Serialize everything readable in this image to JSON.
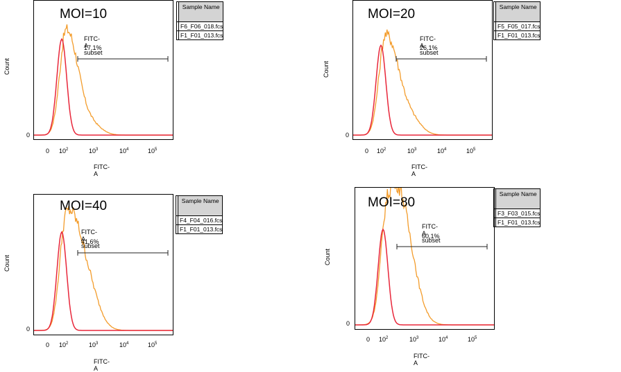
{
  "chart_data": [
    {
      "type": "histogram",
      "title": "MOI=10",
      "xlabel": "FITC-A",
      "ylabel": "Count",
      "y_zero_label": "0",
      "x_ticks": [
        {
          "base": "0",
          "exp": ""
        },
        {
          "base": "10",
          "exp": "2"
        },
        {
          "base": "10",
          "exp": "3"
        },
        {
          "base": "10",
          "exp": "4"
        },
        {
          "base": "10",
          "exp": "5"
        }
      ],
      "gate": {
        "name": "FITC-A subset",
        "percent": "17.1%"
      },
      "legend_header": "Sample Name",
      "series": [
        {
          "name": "F6_F06_018.fcs",
          "color": "#f39c2b"
        },
        {
          "name": "F1_F01_013.fcs",
          "color": "#e8263a"
        }
      ]
    },
    {
      "type": "histogram",
      "title": "MOI=20",
      "xlabel": "FITC-A",
      "ylabel": "Count",
      "y_zero_label": "0",
      "x_ticks": [
        {
          "base": "0",
          "exp": ""
        },
        {
          "base": "10",
          "exp": "2"
        },
        {
          "base": "10",
          "exp": "3"
        },
        {
          "base": "10",
          "exp": "4"
        },
        {
          "base": "10",
          "exp": "5"
        }
      ],
      "gate": {
        "name": "FITC-A subset",
        "percent": "26.1%"
      },
      "legend_header": "Sample Name",
      "series": [
        {
          "name": "F5_F05_017.fcs",
          "color": "#f39c2b"
        },
        {
          "name": "F1_F01_013.fcs",
          "color": "#e8263a"
        }
      ]
    },
    {
      "type": "histogram",
      "title": "MOI=40",
      "xlabel": "FITC-A",
      "ylabel": "Count",
      "y_zero_label": "0",
      "x_ticks": [
        {
          "base": "0",
          "exp": ""
        },
        {
          "base": "10",
          "exp": "2"
        },
        {
          "base": "10",
          "exp": "3"
        },
        {
          "base": "10",
          "exp": "4"
        },
        {
          "base": "10",
          "exp": "5"
        }
      ],
      "gate": {
        "name": "FITC-A subset",
        "percent": "41.6%"
      },
      "legend_header": "Sample Name",
      "series": [
        {
          "name": "F4_F04_016.fcs",
          "color": "#f39c2b"
        },
        {
          "name": "F1_F01_013.fcs",
          "color": "#e8263a"
        }
      ]
    },
    {
      "type": "histogram",
      "title": "MOI=80",
      "xlabel": "FITC-A",
      "ylabel": "Count",
      "y_zero_label": "0",
      "x_ticks": [
        {
          "base": "0",
          "exp": ""
        },
        {
          "base": "10",
          "exp": "2"
        },
        {
          "base": "10",
          "exp": "3"
        },
        {
          "base": "10",
          "exp": "4"
        },
        {
          "base": "10",
          "exp": "5"
        }
      ],
      "gate": {
        "name": "FITC-A subset",
        "percent": "60.1%"
      },
      "legend_header": "Sample Name",
      "series": [
        {
          "name": "F3_F03_015.fcs",
          "color": "#f39c2b"
        },
        {
          "name": "F1_F01_013.fcs",
          "color": "#e8263a"
        }
      ]
    }
  ]
}
